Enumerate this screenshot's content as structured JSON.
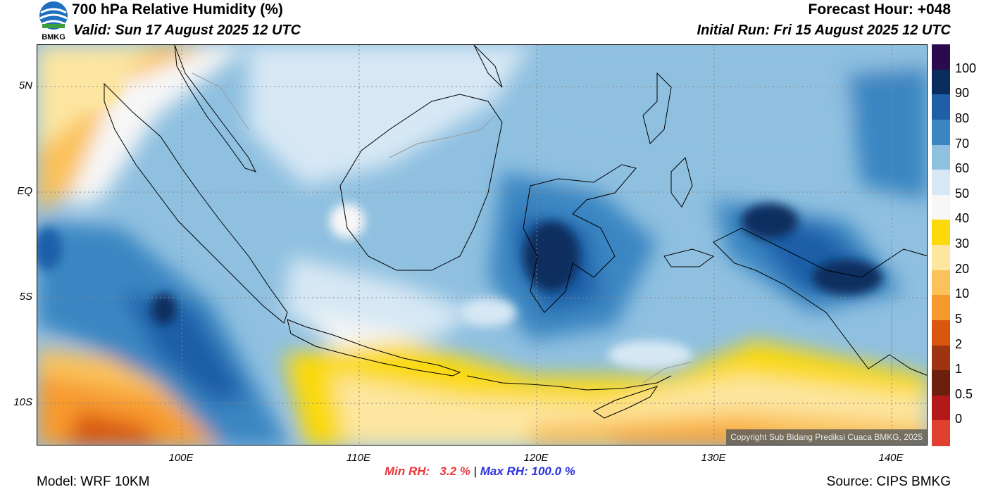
{
  "header": {
    "title": "700 hPa Relative Humidity (%)",
    "valid": "Valid: Sun 17 August 2025 12 UTC",
    "forecast_hour": "Forecast Hour: +048",
    "initial_run": "Initial Run: Fri 15 August 2025 12 UTC",
    "logo_text": "BMKG"
  },
  "map": {
    "lat_labels": [
      "5N",
      "EQ",
      "5S",
      "10S"
    ],
    "lon_labels": [
      "100E",
      "110E",
      "120E",
      "130E",
      "140E"
    ],
    "copyright": "Copyright Sub Bidang Prediksi Cuaca BMKG, 2025"
  },
  "colorbar": {
    "labels": [
      "100",
      "90",
      "80",
      "70",
      "60",
      "50",
      "40",
      "30",
      "20",
      "10",
      "5",
      "2",
      "1",
      "0.5",
      "0"
    ],
    "colors": [
      "#2b0a4e",
      "#0b2d5e",
      "#1f5fa8",
      "#3a86c2",
      "#8fc0e0",
      "#d7e8f4",
      "#f7f7f7",
      "#fbd90a",
      "#fde6a0",
      "#fbc15a",
      "#f79a2e",
      "#d9560c",
      "#9e3510",
      "#6b1f0c",
      "#b41818",
      "#e04030"
    ]
  },
  "stats": {
    "min_label": "Min RH:",
    "min_value": "3.2 %",
    "separator": "|",
    "max_label": "Max RH:",
    "max_value": "100.0 %"
  },
  "footer": {
    "model": "Model: WRF 10KM",
    "source": "Source: CIPS BMKG"
  }
}
